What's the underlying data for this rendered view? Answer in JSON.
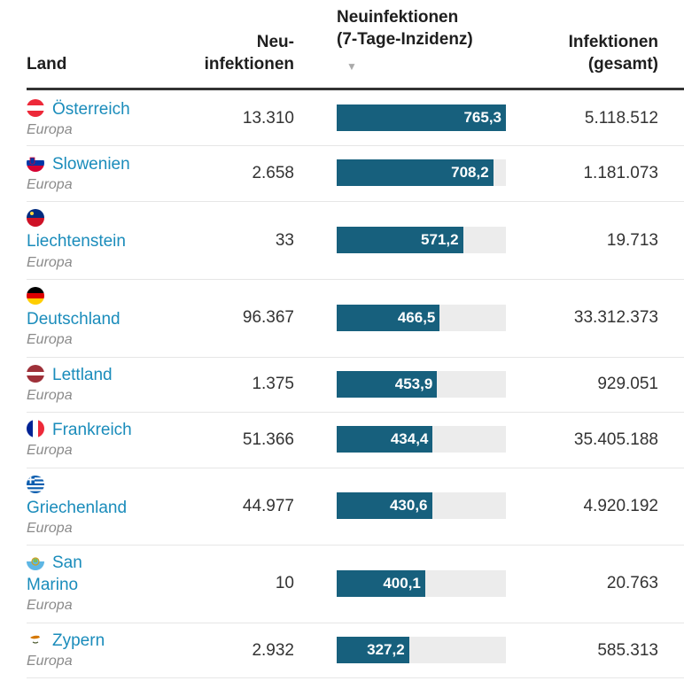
{
  "header": {
    "land": "Land",
    "neu_line1": "Neu-",
    "neu_line2": "infektionen",
    "inz_line1": "Neuinfektionen",
    "inz_line2": "(7-Tage-Inzidenz)",
    "sort_arrow": "▼",
    "ges_line1": "Infektionen",
    "ges_line2": "(gesamt)"
  },
  "bar_max": 765.3,
  "rows": [
    {
      "country": "Österreich",
      "flag": "austria-flag-icon",
      "region": "Europa",
      "neu": "13.310",
      "inz_label": "765,3",
      "inz": 765.3,
      "gesamt": "5.118.512"
    },
    {
      "country": "Slowenien",
      "flag": "slovenia-flag-icon",
      "region": "Europa",
      "neu": "2.658",
      "inz_label": "708,2",
      "inz": 708.2,
      "gesamt": "1.181.073"
    },
    {
      "country": "Liechtenstein",
      "flag": "liechtenstein-flag-icon",
      "region": "Europa",
      "neu": "33",
      "inz_label": "571,2",
      "inz": 571.2,
      "gesamt": "19.713"
    },
    {
      "country": "Deutschland",
      "flag": "germany-flag-icon",
      "region": "Europa",
      "neu": "96.367",
      "inz_label": "466,5",
      "inz": 466.5,
      "gesamt": "33.312.373"
    },
    {
      "country": "Lettland",
      "flag": "latvia-flag-icon",
      "region": "Europa",
      "neu": "1.375",
      "inz_label": "453,9",
      "inz": 453.9,
      "gesamt": "929.051"
    },
    {
      "country": "Frankreich",
      "flag": "france-flag-icon",
      "region": "Europa",
      "neu": "51.366",
      "inz_label": "434,4",
      "inz": 434.4,
      "gesamt": "35.405.188"
    },
    {
      "country": "Griechenland",
      "flag": "greece-flag-icon",
      "region": "Europa",
      "neu": "44.977",
      "inz_label": "430,6",
      "inz": 430.6,
      "gesamt": "4.920.192"
    },
    {
      "country_line1": "San",
      "country_line2": "Marino",
      "flag": "san-marino-flag-icon",
      "region": "Europa",
      "neu": "10",
      "inz_label": "400,1",
      "inz": 400.1,
      "gesamt": "20.763"
    },
    {
      "country": "Zypern",
      "flag": "cyprus-flag-icon",
      "region": "Europa",
      "neu": "2.932",
      "inz_label": "327,2",
      "inz": 327.2,
      "gesamt": "585.313"
    }
  ]
}
